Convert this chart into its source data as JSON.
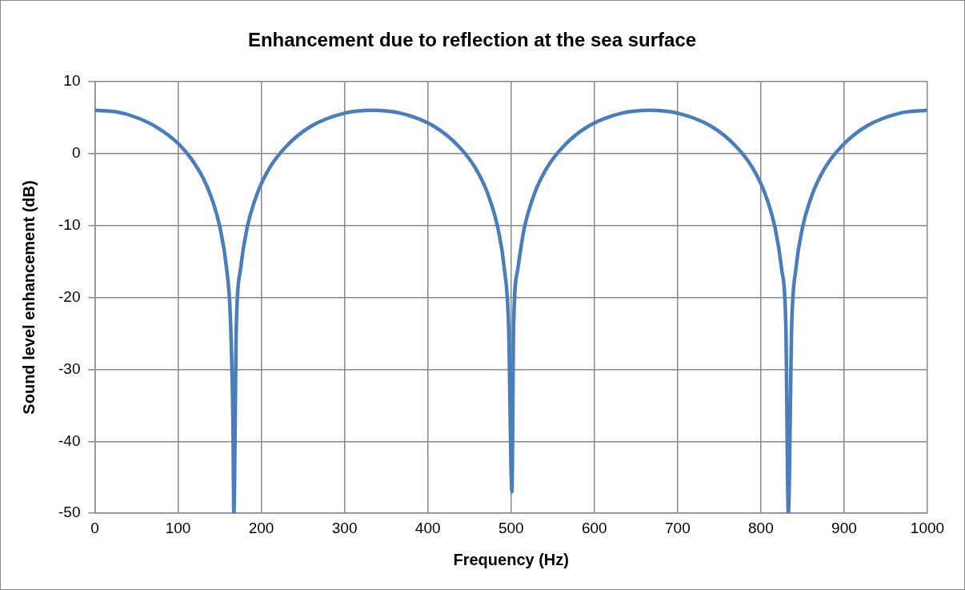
{
  "chart_data": {
    "type": "line",
    "title": "Enhancement due to reflection at the sea surface",
    "xlabel": "Frequency (Hz)",
    "ylabel": "Sound level enhancement (dB)",
    "x": [
      0,
      25,
      50,
      75,
      100,
      115,
      130,
      140,
      150,
      158,
      163,
      166,
      167,
      170,
      175,
      183,
      195,
      210,
      230,
      260,
      300,
      333,
      367,
      407,
      437,
      457,
      472,
      484,
      492,
      497,
      501,
      503,
      508,
      516,
      528,
      543,
      563,
      593,
      633,
      667,
      700,
      740,
      770,
      790,
      805,
      817,
      825,
      830,
      833,
      837,
      842,
      850,
      862,
      877,
      897,
      927,
      967,
      1000
    ],
    "series": [
      {
        "color": "#4a7ebb",
        "values": [
          6.0,
          5.8,
          5.0,
          3.6,
          1.4,
          -0.6,
          -3.4,
          -6.1,
          -10.1,
          -15.7,
          -23.2,
          -38,
          -50,
          -24,
          -16.1,
          -10.3,
          -5.6,
          -2.0,
          1.0,
          3.8,
          5.6,
          6.0,
          5.6,
          3.8,
          1.0,
          -2.0,
          -5.6,
          -10.3,
          -16.1,
          -24,
          -47,
          -24,
          -16.1,
          -10.3,
          -5.6,
          -2.0,
          1.0,
          3.8,
          5.6,
          6.0,
          5.6,
          3.8,
          1.0,
          -2.0,
          -5.6,
          -10.3,
          -16.1,
          -24,
          -50,
          -24,
          -16.1,
          -10.3,
          -5.6,
          -2.0,
          1.0,
          3.8,
          5.6,
          6.0
        ]
      }
    ],
    "xlim": [
      0,
      1000
    ],
    "xticks": [
      0,
      100,
      200,
      300,
      400,
      500,
      600,
      700,
      800,
      900,
      1000
    ],
    "ylim": [
      -50,
      10
    ],
    "yticks": [
      -50,
      -40,
      -30,
      -20,
      -10,
      0,
      10
    ],
    "grid": true,
    "legend": false,
    "marker": "none",
    "line_style": "solid"
  }
}
